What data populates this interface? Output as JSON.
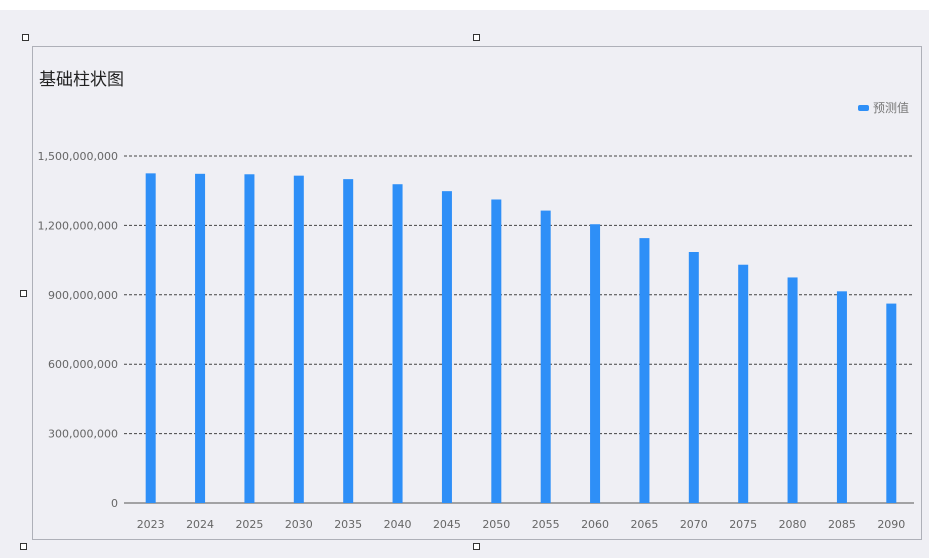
{
  "chart_data": {
    "type": "bar",
    "title": "基础柱状图",
    "xlabel": "",
    "ylabel": "",
    "categories": [
      "2023",
      "2024",
      "2025",
      "2030",
      "2035",
      "2040",
      "2045",
      "2050",
      "2055",
      "2060",
      "2065",
      "2070",
      "2075",
      "2080",
      "2085",
      "2090"
    ],
    "series": [
      {
        "name": "预测值",
        "color": "#2e8ff7",
        "values": [
          1425000000,
          1423000000,
          1421000000,
          1415000000,
          1400000000,
          1378000000,
          1348000000,
          1312000000,
          1264000000,
          1205000000,
          1145000000,
          1085000000,
          1030000000,
          975000000,
          915000000,
          862000000
        ]
      }
    ],
    "ylim": [
      0,
      1500000000
    ],
    "yticks": [
      0,
      300000000,
      600000000,
      900000000,
      1200000000,
      1500000000
    ],
    "ytick_labels": [
      "0",
      "300,000,000",
      "600,000,000",
      "900,000,000",
      "1,200,000,000",
      "1,500,000,000"
    ],
    "grid": true,
    "legend_position": "top-right"
  }
}
